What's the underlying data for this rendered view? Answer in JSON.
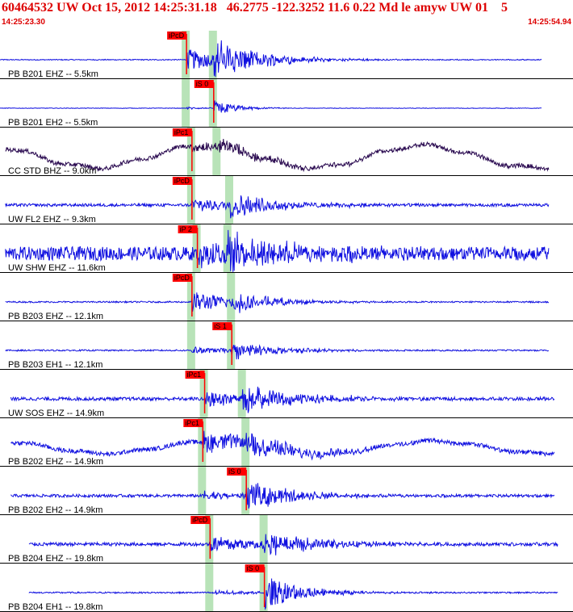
{
  "header": {
    "title": "60464532 UW Oct 15, 2012 14:25:31.18   46.2775 -122.3252 11.6 0.22 Md le amyw UW 01    5",
    "start_time": "14:25:23.30",
    "end_time": "14:25:54.94"
  },
  "colors": {
    "trace": "#1010e0",
    "trace_dark": "#2a0a50",
    "pick_box": "#ff0000",
    "window": "#b8e3b8",
    "title": "#dd0000",
    "separator": "#000000"
  },
  "chart_data": {
    "type": "line",
    "title": "60464532 UW Oct 15, 2012 14:25:31.18   46.2775 -122.3252 11.6 0.22 Md le amyw UW 01    5",
    "x_start": "14:25:23.30",
    "x_end": "14:25:54.94",
    "xlim": [
      0,
      31.64
    ],
    "grid": false,
    "traces": [
      {
        "label": "PB B201 EHZ -- 5.5km",
        "color": "trace",
        "data_start": 0,
        "data_end": 29.9,
        "noise": 0.02,
        "lowfreq": 0,
        "onset_p": 10.3,
        "onset_s": 11.8,
        "amp_p": 0.45,
        "amp_s": 0.8,
        "decay": 2.5,
        "picks": [
          {
            "label": "iPcD",
            "t": 10.3
          }
        ]
      },
      {
        "label": "PB B201 EH2 -- 5.5km",
        "color": "trace",
        "data_start": 0,
        "data_end": 29.9,
        "noise": 0.01,
        "lowfreq": 0,
        "onset_p": 10.3,
        "onset_s": 11.8,
        "amp_p": 0.05,
        "amp_s": 0.35,
        "decay": 1.2,
        "picks": [
          {
            "label": "iS 0",
            "t": 11.8
          }
        ]
      },
      {
        "label": "CC STD BHZ -- 9.0km",
        "color": "trace_dark",
        "data_start": 0.3,
        "data_end": 30.3,
        "noise": 0.09,
        "lowfreq": 0.45,
        "onset_p": 10.6,
        "onset_s": 12.0,
        "amp_p": 0.2,
        "amp_s": 0.25,
        "decay": 3,
        "picks": [
          {
            "label": "iPc1",
            "t": 10.6
          }
        ]
      },
      {
        "label": "UW FL2 EHZ -- 9.3km",
        "color": "trace",
        "data_start": 0.3,
        "data_end": 30.3,
        "noise": 0.06,
        "lowfreq": 0,
        "onset_p": 10.6,
        "onset_s": 12.7,
        "amp_p": 0.3,
        "amp_s": 0.45,
        "decay": 3,
        "picks": [
          {
            "label": "iPcD",
            "t": 10.6
          }
        ]
      },
      {
        "label": "UW SHW EHZ -- 11.6km",
        "color": "trace",
        "data_start": 0.3,
        "data_end": 30.3,
        "noise": 0.28,
        "lowfreq": 0,
        "onset_p": 10.9,
        "onset_s": 12.6,
        "amp_p": 0.5,
        "amp_s": 0.7,
        "decay": 3.5,
        "picks": [
          {
            "label": "iP 2",
            "t": 10.9
          }
        ]
      },
      {
        "label": "PB B203 EHZ -- 12.1km",
        "color": "trace",
        "data_start": 0.3,
        "data_end": 30.3,
        "noise": 0.03,
        "lowfreq": 0,
        "onset_p": 10.6,
        "onset_s": 12.8,
        "amp_p": 0.45,
        "amp_s": 0.4,
        "decay": 2.5,
        "picks": [
          {
            "label": "iPcD",
            "t": 10.6
          }
        ]
      },
      {
        "label": "PB B203 EH1 -- 12.1km",
        "color": "trace",
        "data_start": 0.3,
        "data_end": 30.3,
        "noise": 0.03,
        "lowfreq": 0,
        "onset_p": 10.6,
        "onset_s": 12.8,
        "amp_p": 0.15,
        "amp_s": 0.35,
        "decay": 2.5,
        "picks": [
          {
            "label": "iS 1",
            "t": 12.8
          }
        ]
      },
      {
        "label": "UW SOS EHZ -- 14.9km",
        "color": "trace",
        "data_start": 0.6,
        "data_end": 30.6,
        "noise": 0.07,
        "lowfreq": 0,
        "onset_p": 11.3,
        "onset_s": 13.4,
        "amp_p": 0.35,
        "amp_s": 0.55,
        "decay": 3,
        "picks": [
          {
            "label": "iPc1",
            "t": 11.3
          }
        ]
      },
      {
        "label": "PB B202 EHZ -- 14.9km",
        "color": "trace",
        "data_start": 0.6,
        "data_end": 30.6,
        "noise": 0.09,
        "lowfreq": 0.25,
        "onset_p": 11.2,
        "onset_s": 13.6,
        "amp_p": 0.45,
        "amp_s": 0.5,
        "decay": 3,
        "picks": [
          {
            "label": "iPc1",
            "t": 11.2
          }
        ]
      },
      {
        "label": "PB B202 EH2 -- 14.9km",
        "color": "trace",
        "data_start": 0.6,
        "data_end": 30.6,
        "noise": 0.06,
        "lowfreq": 0,
        "onset_p": 11.2,
        "onset_s": 13.6,
        "amp_p": 0.2,
        "amp_s": 0.6,
        "decay": 2.5,
        "picks": [
          {
            "label": "iS 0",
            "t": 13.6
          }
        ]
      },
      {
        "label": "PB B204 EHZ -- 19.8km",
        "color": "trace",
        "data_start": 1.6,
        "data_end": 30.8,
        "noise": 0.07,
        "lowfreq": 0,
        "onset_p": 11.6,
        "onset_s": 14.6,
        "amp_p": 0.35,
        "amp_s": 0.45,
        "decay": 3,
        "picks": [
          {
            "label": "iPcD",
            "t": 11.6
          }
        ]
      },
      {
        "label": "PB B204 EH1 -- 19.8km",
        "color": "trace",
        "data_start": 1.6,
        "data_end": 30.8,
        "noise": 0.03,
        "lowfreq": 0,
        "onset_p": 11.6,
        "onset_s": 14.6,
        "amp_p": 0.1,
        "amp_s": 0.7,
        "decay": 2,
        "picks": [
          {
            "label": "iS 0",
            "t": 14.6
          }
        ]
      }
    ]
  }
}
